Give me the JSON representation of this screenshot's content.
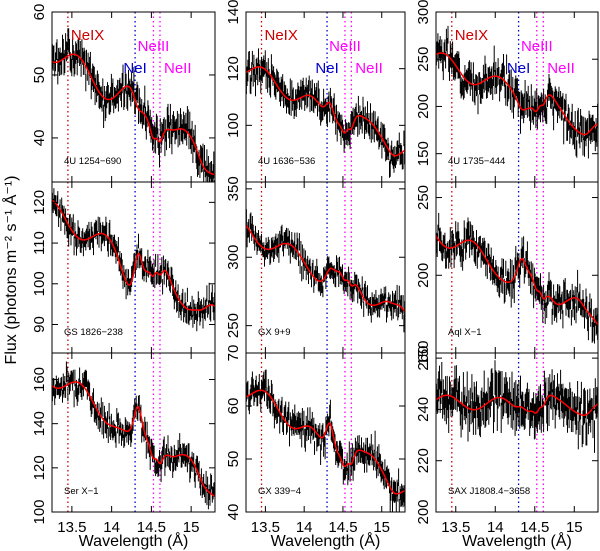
{
  "chart_data": {
    "type": "line",
    "layout": "3x3 grid of spectral panels with shared x axis",
    "xlabel": "Wavelength (Å)",
    "ylabel": "Flux (photons m⁻² s⁻¹ Å⁻¹)",
    "xlim": [
      13.25,
      15.3
    ],
    "xticks": [
      "13.5",
      "14",
      "14.5",
      "15"
    ],
    "xtick_values": [
      13.5,
      14.0,
      14.5,
      15.0
    ],
    "colors": {
      "model": "#ff0000",
      "data": "#000000",
      "NeIX": "#cc0000",
      "NeI": "#0000cc",
      "NeII": "#ff00ff",
      "NeIII": "#ff00ff"
    },
    "lines": [
      {
        "name": "NeIX",
        "wavelength": 13.45,
        "color": "#cc0000"
      },
      {
        "name": "NeI",
        "wavelength": 14.295,
        "color": "#0000cc"
      },
      {
        "name": "NeIII",
        "wavelength": 14.526,
        "color": "#ff00ff"
      },
      {
        "name": "NeII",
        "wavelength": 14.608,
        "color": "#ff00ff"
      }
    ],
    "series": [
      {
        "name": "data (binned flux with error bars)",
        "color": "#000000"
      },
      {
        "name": "model",
        "color": "#ff0000"
      }
    ],
    "panels": [
      {
        "source": "4U 1254−690",
        "ylim": [
          33,
          60
        ],
        "yticks": [
          "40",
          "50",
          "60"
        ],
        "ytick_values": [
          40,
          50,
          60
        ],
        "trend": [
          54,
          36
        ],
        "dip": -0.3,
        "noise": 1.8,
        "seed": 1
      },
      {
        "source": "4U 1636−536",
        "ylim": [
          80,
          140
        ],
        "yticks": [
          "100",
          "120",
          "140"
        ],
        "ytick_values": [
          100,
          120,
          140
        ],
        "trend": [
          120,
          92
        ],
        "dip": 0.5,
        "noise": 3.5,
        "seed": 2
      },
      {
        "source": "4U 1735−444",
        "ylim": [
          120,
          300
        ],
        "yticks": [
          "150",
          "200",
          "250",
          "300"
        ],
        "ytick_values": [
          150,
          200,
          250,
          300
        ],
        "trend": [
          250,
          175
        ],
        "dip": -0.2,
        "noise": 12,
        "seed": 3
      },
      {
        "source": "GS 1826−238",
        "ylim": [
          83,
          125
        ],
        "yticks": [
          "90",
          "100",
          "110",
          "120"
        ],
        "ytick_values": [
          90,
          100,
          110,
          120
        ],
        "trend": [
          118,
          92
        ],
        "dip": 1.0,
        "noise": 2.2,
        "seed": 4
      },
      {
        "source": "GX 9+9",
        "ylim": [
          230,
          355
        ],
        "yticks": [
          "250",
          "300",
          "350"
        ],
        "ytick_values": [
          250,
          300,
          350
        ],
        "trend": [
          320,
          258
        ],
        "dip": 0.3,
        "noise": 6,
        "seed": 5
      },
      {
        "source": "Aql X−1",
        "ylim": [
          150,
          260
        ],
        "yticks": [
          "150",
          "200",
          "250"
        ],
        "ytick_values": [
          150,
          200,
          250
        ],
        "trend": [
          228,
          172
        ],
        "dip": 0.5,
        "noise": 7,
        "seed": 6
      },
      {
        "source": "Ser X−1",
        "ylim": [
          100,
          172
        ],
        "yticks": [
          "100",
          "120",
          "140",
          "160"
        ],
        "ytick_values": [
          100,
          120,
          140,
          160
        ],
        "trend": [
          162,
          112
        ],
        "dip": 0.8,
        "noise": 4,
        "seed": 7
      },
      {
        "source": "GX 339−4",
        "ylim": [
          40,
          70
        ],
        "yticks": [
          "40",
          "50",
          "60",
          "70"
        ],
        "ytick_values": [
          40,
          50,
          60,
          70
        ],
        "trend": [
          63,
          45
        ],
        "dip": 0.8,
        "noise": 1.8,
        "seed": 8
      },
      {
        "source": "SAX J1808.4−3658",
        "ylim": [
          200,
          262
        ],
        "yticks": [
          "200",
          "220",
          "240",
          "260"
        ],
        "ytick_values": [
          200,
          220,
          240,
          260
        ],
        "trend": [
          243,
          241
        ],
        "dip": 0.2,
        "noise": 6,
        "seed": 9
      }
    ]
  }
}
